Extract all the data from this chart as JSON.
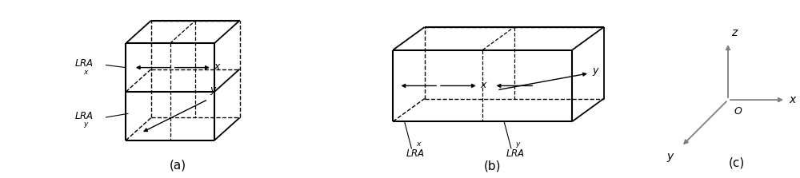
{
  "bg_color": "#ffffff",
  "line_color": "#000000",
  "label_a": "(a)",
  "label_b": "(b)",
  "label_c": "(c)"
}
